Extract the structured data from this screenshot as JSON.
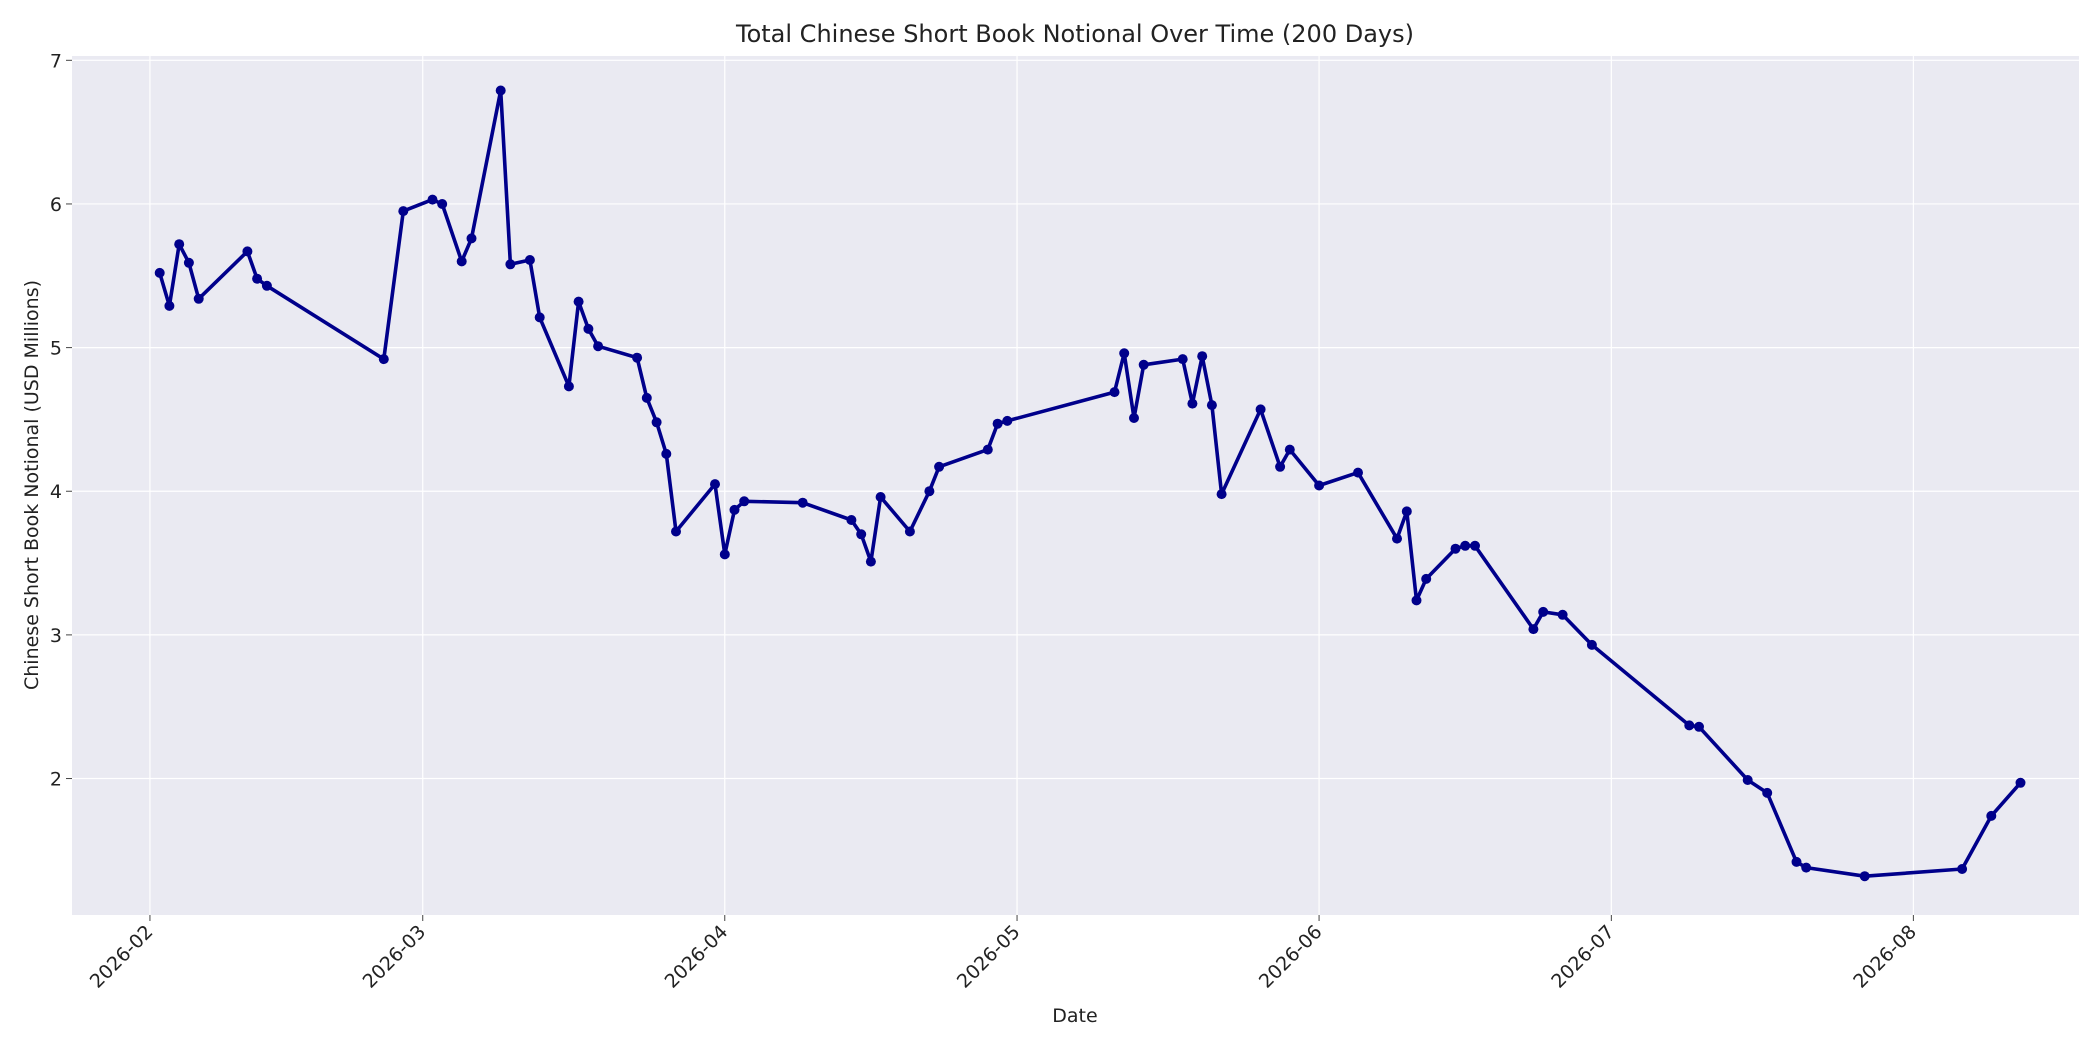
{
  "chart_data": {
    "type": "line",
    "title": "Total Chinese Short Book Notional Over Time (200 Days)",
    "xlabel": "Date",
    "ylabel": "Chinese Short Book Notional (USD Millions)",
    "xlim": [
      "2026-01-24",
      "2026-08-18"
    ],
    "ylim": [
      1.05,
      7.03
    ],
    "grid": true,
    "x_ticks": [
      "2026-02-01",
      "2026-03-01",
      "2026-04-01",
      "2026-05-01",
      "2026-06-01",
      "2026-07-01",
      "2026-08-01"
    ],
    "x_tick_labels": [
      "2026-02",
      "2026-03",
      "2026-04",
      "2026-05",
      "2026-06",
      "2026-07",
      "2026-08"
    ],
    "y_ticks": [
      2,
      3,
      4,
      5,
      6,
      7
    ],
    "y_tick_labels": [
      "2",
      "3",
      "4",
      "5",
      "6",
      "7"
    ],
    "colors": {
      "line": "#00008b",
      "plot_bg": "#eaeaf2",
      "grid": "#ffffff"
    },
    "series": [
      {
        "x": [
          "2026-02-02",
          "2026-02-03",
          "2026-02-04",
          "2026-02-05",
          "2026-02-06",
          "2026-02-11",
          "2026-02-12",
          "2026-02-13",
          "2026-02-25",
          "2026-02-27",
          "2026-03-02",
          "2026-03-03",
          "2026-03-05",
          "2026-03-06",
          "2026-03-09",
          "2026-03-10",
          "2026-03-12",
          "2026-03-13",
          "2026-03-16",
          "2026-03-17",
          "2026-03-18",
          "2026-03-19",
          "2026-03-23",
          "2026-03-24",
          "2026-03-25",
          "2026-03-26",
          "2026-03-27",
          "2026-03-31",
          "2026-04-01",
          "2026-04-02",
          "2026-04-03",
          "2026-04-09",
          "2026-04-14",
          "2026-04-15",
          "2026-04-16",
          "2026-04-17",
          "2026-04-20",
          "2026-04-22",
          "2026-04-23",
          "2026-04-28",
          "2026-04-29",
          "2026-04-30",
          "2026-05-11",
          "2026-05-12",
          "2026-05-13",
          "2026-05-14",
          "2026-05-18",
          "2026-05-19",
          "2026-05-20",
          "2026-05-21",
          "2026-05-22",
          "2026-05-26",
          "2026-05-28",
          "2026-05-29",
          "2026-06-01",
          "2026-06-05",
          "2026-06-09",
          "2026-06-10",
          "2026-06-11",
          "2026-06-12",
          "2026-06-15",
          "2026-06-16",
          "2026-06-17",
          "2026-06-23",
          "2026-06-24",
          "2026-06-26",
          "2026-06-29",
          "2026-07-09",
          "2026-07-10",
          "2026-07-15",
          "2026-07-17",
          "2026-07-20",
          "2026-07-21",
          "2026-07-27",
          "2026-08-06",
          "2026-08-09",
          "2026-08-12"
        ],
        "values": [
          5.52,
          5.29,
          5.72,
          5.59,
          5.34,
          5.67,
          5.48,
          5.43,
          4.92,
          5.95,
          6.03,
          6.0,
          5.6,
          5.76,
          6.79,
          5.58,
          5.61,
          5.21,
          4.73,
          5.32,
          5.13,
          5.01,
          4.93,
          4.65,
          4.48,
          4.26,
          3.72,
          4.05,
          3.56,
          3.87,
          3.93,
          3.92,
          3.8,
          3.7,
          3.51,
          3.96,
          3.72,
          4.0,
          4.17,
          4.29,
          4.47,
          4.49,
          4.69,
          4.96,
          4.51,
          4.88,
          4.92,
          4.61,
          4.94,
          4.6,
          3.98,
          4.57,
          4.17,
          4.29,
          4.04,
          4.13,
          3.67,
          3.86,
          3.24,
          3.39,
          3.6,
          3.62,
          3.62,
          3.04,
          3.16,
          3.14,
          2.93,
          2.37,
          2.36,
          1.99,
          1.9,
          1.42,
          1.38,
          1.32,
          1.37,
          1.74,
          1.97
        ]
      }
    ]
  }
}
